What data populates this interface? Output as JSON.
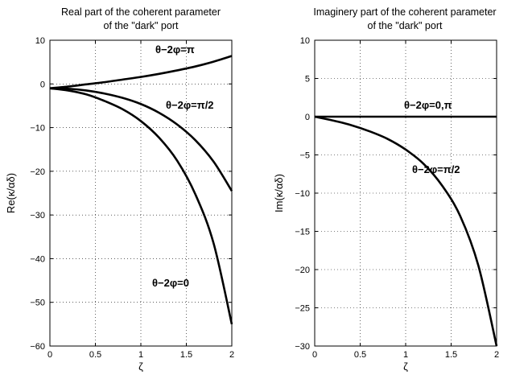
{
  "chart_data": [
    {
      "type": "line",
      "title": "Real part of the  coherent parameter",
      "subtitle": "of the \"dark\" port",
      "xlabel": "ζ",
      "ylabel": "Re(κ/αδ)",
      "xlim": [
        0,
        2
      ],
      "ylim": [
        -60,
        10
      ],
      "xticks": [
        0,
        0.5,
        1,
        1.5,
        2
      ],
      "xtick_labels": [
        "0",
        "0.5",
        "1",
        "1.5",
        "2"
      ],
      "yticks": [
        10,
        0,
        -10,
        -20,
        -30,
        -40,
        -50,
        -60
      ],
      "ytick_labels": [
        "10",
        "0",
        "−10",
        "−20",
        "−30",
        "−40",
        "−50",
        "−60"
      ],
      "grid": true,
      "x": [
        0,
        0.2,
        0.4,
        0.6,
        0.8,
        1.0,
        1.2,
        1.4,
        1.6,
        1.8,
        2.0
      ],
      "series": [
        {
          "name": "θ−2φ=π",
          "values": [
            -1,
            -0.6,
            -0.1,
            0.4,
            1.0,
            1.6,
            2.3,
            3.1,
            4.0,
            5.1,
            6.4
          ]
        },
        {
          "name": "θ−2φ=π/2",
          "values": [
            -1,
            -1.1,
            -1.5,
            -2.2,
            -3.2,
            -4.6,
            -6.6,
            -9.3,
            -12.9,
            -17.8,
            -24.5
          ]
        },
        {
          "name": "θ−2φ=0",
          "values": [
            -1,
            -1.5,
            -2.4,
            -3.9,
            -5.8,
            -8.5,
            -12.3,
            -17.6,
            -25.3,
            -36.5,
            -55.0
          ]
        }
      ],
      "annotations": [
        "θ−2φ=π",
        "θ−2φ=π/2",
        "θ−2φ=0"
      ]
    },
    {
      "type": "line",
      "title": "Imaginery part of the  coherent parameter",
      "subtitle": "of the \"dark\" port",
      "xlabel": "ζ",
      "ylabel": "Im(κ/αδ)",
      "xlim": [
        0,
        2
      ],
      "ylim": [
        -30,
        10
      ],
      "xticks": [
        0,
        0.5,
        1,
        1.5,
        2
      ],
      "xtick_labels": [
        "0",
        "0.5",
        "1",
        "1.5",
        "2"
      ],
      "yticks": [
        10,
        5,
        0,
        -5,
        -10,
        -15,
        -20,
        -25,
        -30
      ],
      "ytick_labels": [
        "10",
        "5",
        "0",
        "−5",
        "−10",
        "−15",
        "−20",
        "−25",
        "−30"
      ],
      "grid": true,
      "x": [
        0,
        0.2,
        0.4,
        0.6,
        0.8,
        1.0,
        1.2,
        1.4,
        1.6,
        1.8,
        2.0
      ],
      "series": [
        {
          "name": "θ−2φ=0,π",
          "values": [
            0,
            0,
            0,
            0,
            0,
            0,
            0,
            0,
            0,
            0,
            0
          ]
        },
        {
          "name": "θ−2φ=π/2",
          "values": [
            0,
            -0.5,
            -1.1,
            -1.9,
            -2.9,
            -4.3,
            -6.2,
            -9.0,
            -13.0,
            -19.5,
            -30.0
          ]
        }
      ],
      "annotations": [
        "θ−2φ=0,π",
        "θ−2φ=π/2"
      ]
    }
  ]
}
